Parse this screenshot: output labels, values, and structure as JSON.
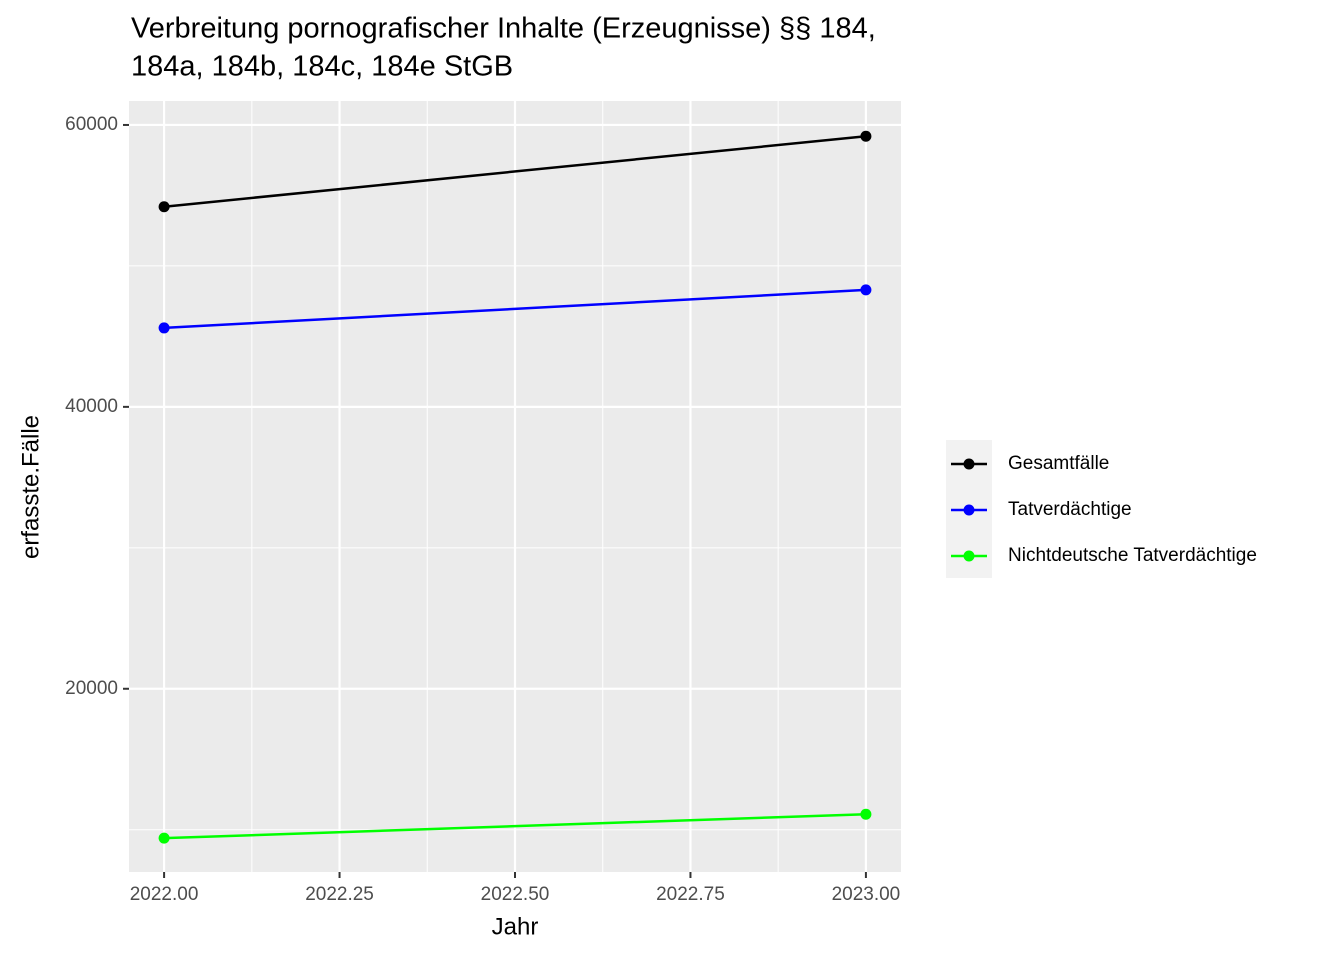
{
  "chart_data": {
    "type": "line",
    "title": [
      "Verbreitung pornografischer Inhalte (Erzeugnisse) §§ 184,",
      "184a, 184b, 184c, 184e StGB"
    ],
    "x_label": "Jahr",
    "y_label": "erfasste.Fälle",
    "x": [
      2022,
      2023
    ],
    "series": [
      {
        "name": "Gesamtfälle",
        "color": "#000000",
        "values": [
          54200,
          59200
        ]
      },
      {
        "name": "Tatverdächtige",
        "color": "#0000ff",
        "values": [
          45600,
          48300
        ]
      },
      {
        "name": "Nichtdeutsche Tatverdächtige",
        "color": "#00ff00",
        "values": [
          9400,
          11100
        ]
      }
    ],
    "xlim": [
      2021.95,
      2023.05
    ],
    "ylim": [
      7000,
      61700
    ],
    "xticks": [
      {
        "value": 2022,
        "label": "2022.00"
      },
      {
        "value": 2022.25,
        "label": "2022.25"
      },
      {
        "value": 2022.5,
        "label": "2022.50"
      },
      {
        "value": 2022.75,
        "label": "2022.75"
      },
      {
        "value": 2023,
        "label": "2023.00"
      }
    ],
    "yticks": [
      20000,
      40000,
      60000
    ],
    "grid": true,
    "legend": "right"
  }
}
